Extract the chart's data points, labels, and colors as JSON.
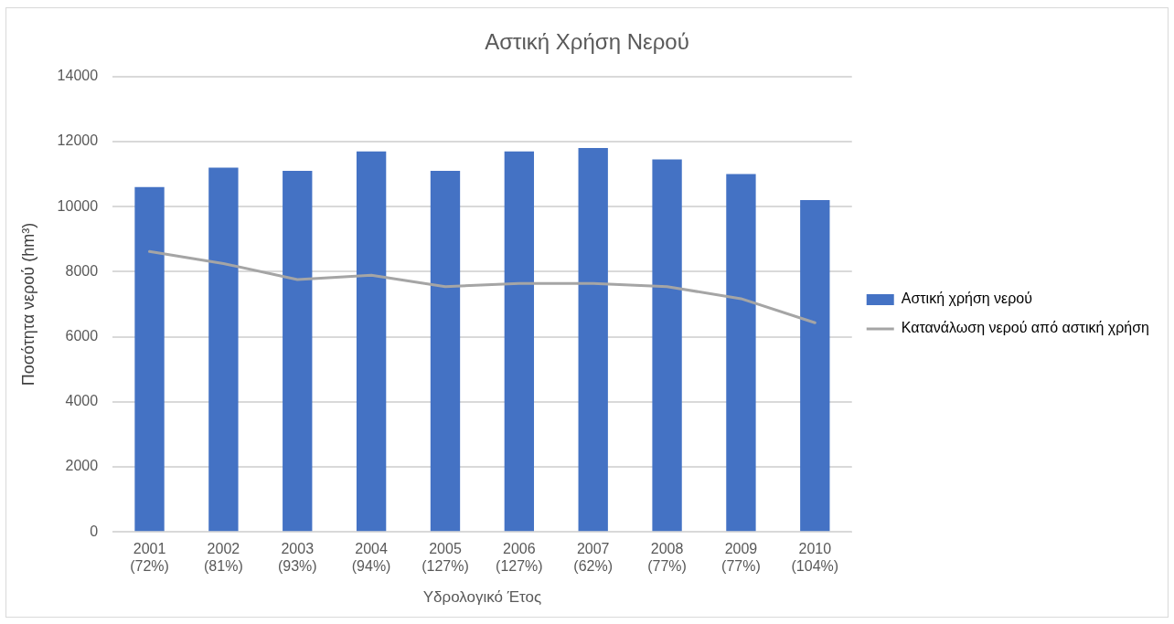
{
  "chart_data": {
    "type": "bar",
    "title": "Αστική Χρήση Νερού",
    "xlabel": "Υδρολογικό Έτος",
    "ylabel": "Ποσότητα νερού (hm³)",
    "categories": [
      "2001\n(72%)",
      "2002\n(81%)",
      "2003\n(93%)",
      "2004\n(94%)",
      "2005\n(127%)",
      "2006\n(127%)",
      "2007\n(62%)",
      "2008\n(77%)",
      "2009\n(77%)",
      "2010\n(104%)"
    ],
    "series": [
      {
        "name": "Αστική χρήση νερού",
        "color": "#4472c4",
        "values": [
          10600,
          11200,
          11100,
          11700,
          11100,
          11700,
          11800,
          11450,
          11000,
          10200
        ]
      },
      {
        "name": "Κατανάλωση νερού από αστική χρήση",
        "type": "line",
        "color": "#a5a5a5",
        "values": [
          8620,
          8250,
          7760,
          7890,
          7540,
          7640,
          7640,
          7540,
          7170,
          6430
        ]
      }
    ],
    "ylim": [
      0,
      14000
    ],
    "yticks": [
      0,
      2000,
      4000,
      6000,
      8000,
      10000,
      12000,
      14000
    ],
    "grid": "y",
    "legend": "right",
    "marker": "none",
    "line_style": "solid"
  }
}
